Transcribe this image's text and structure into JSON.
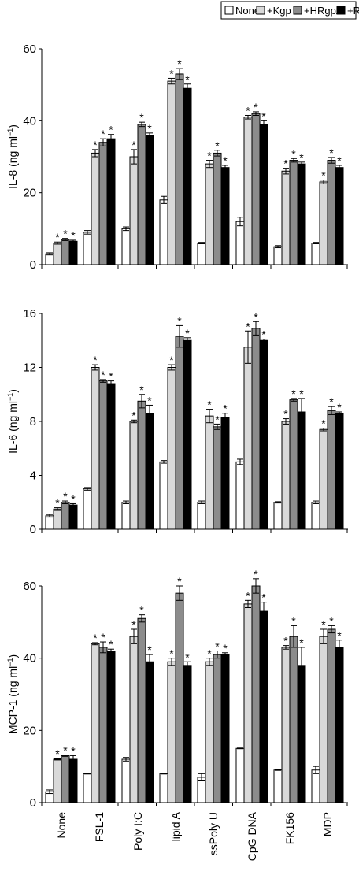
{
  "legend": {
    "items": [
      {
        "label": "None",
        "color": "#ffffff"
      },
      {
        "label": "+Kgp",
        "color": "#d9d9d9"
      },
      {
        "label": "+HRgpA",
        "color": "#8c8c8c"
      },
      {
        "label": "+RgpB",
        "color": "#000000"
      }
    ]
  },
  "significance_marker": "*",
  "chart_data": [
    {
      "type": "bar",
      "ylabel": "IL-8 (ng ml",
      "ylabel_sup": "−1",
      "ylabel_close": ")",
      "ylim": [
        0,
        60
      ],
      "yticks": [
        0,
        20,
        40,
        60
      ],
      "categories": [
        "None",
        "FSL-1",
        "Poly I:C",
        "lipid A",
        "ssPoly U",
        "CpG DNA",
        "FK156",
        "MDP"
      ],
      "series": [
        {
          "name": "None",
          "values": [
            3,
            9,
            10,
            18,
            6,
            12,
            5,
            6
          ],
          "errors": [
            0.3,
            0.5,
            0.5,
            1.0,
            0.2,
            1.2,
            0.3,
            0.2
          ],
          "stars": [
            false,
            false,
            false,
            false,
            false,
            false,
            false,
            false
          ]
        },
        {
          "name": "+Kgp",
          "values": [
            6,
            31,
            30,
            51,
            28,
            41,
            26,
            23
          ],
          "errors": [
            0.3,
            1.0,
            2.0,
            0.8,
            1.0,
            0.5,
            0.8,
            0.5
          ],
          "stars": [
            true,
            true,
            true,
            true,
            true,
            true,
            true,
            true
          ]
        },
        {
          "name": "+HRgpA",
          "values": [
            7,
            34,
            39,
            53,
            31,
            42,
            29,
            29
          ],
          "errors": [
            0.3,
            1.0,
            0.6,
            1.5,
            0.8,
            0.5,
            0.5,
            0.8
          ],
          "stars": [
            true,
            true,
            true,
            true,
            true,
            true,
            true,
            true
          ]
        },
        {
          "name": "+RgpB",
          "values": [
            6.5,
            35,
            36,
            49,
            27,
            39,
            28,
            27
          ],
          "errors": [
            0.3,
            1.2,
            0.6,
            1.2,
            0.6,
            1.0,
            0.5,
            0.6
          ],
          "stars": [
            true,
            true,
            true,
            true,
            true,
            true,
            true,
            true
          ]
        }
      ]
    },
    {
      "type": "bar",
      "ylabel": "IL-6 (ng ml",
      "ylabel_sup": "−1",
      "ylabel_close": ")",
      "ylim": [
        0,
        16
      ],
      "yticks": [
        0,
        4,
        8,
        12,
        16
      ],
      "categories": [
        "None",
        "FSL-1",
        "Poly I:C",
        "lipid A",
        "ssPoly U",
        "CpG DNA",
        "FK156",
        "MDP"
      ],
      "series": [
        {
          "name": "None",
          "values": [
            1.0,
            3.0,
            2.0,
            5.0,
            2.0,
            5.0,
            2.0,
            2.0
          ],
          "errors": [
            0.1,
            0.1,
            0.1,
            0.1,
            0.1,
            0.2,
            0.05,
            0.1
          ],
          "stars": [
            false,
            false,
            false,
            false,
            false,
            false,
            false,
            false
          ]
        },
        {
          "name": "+Kgp",
          "values": [
            1.5,
            12.0,
            8.0,
            12.0,
            8.4,
            13.5,
            8.0,
            7.4
          ],
          "errors": [
            0.1,
            0.2,
            0.1,
            0.2,
            0.5,
            1.2,
            0.2,
            0.1
          ],
          "stars": [
            true,
            true,
            true,
            true,
            true,
            true,
            true,
            true
          ]
        },
        {
          "name": "+HRgpA",
          "values": [
            2.0,
            11.0,
            9.5,
            14.3,
            7.6,
            14.9,
            9.6,
            8.8
          ],
          "errors": [
            0.1,
            0.1,
            0.5,
            0.8,
            0.2,
            0.5,
            0.1,
            0.3
          ],
          "stars": [
            true,
            true,
            true,
            true,
            true,
            true,
            true,
            true
          ]
        },
        {
          "name": "+RgpB",
          "values": [
            1.8,
            10.8,
            8.6,
            14.0,
            8.3,
            14.0,
            8.7,
            8.6
          ],
          "errors": [
            0.1,
            0.2,
            0.6,
            0.2,
            0.3,
            0.1,
            1.0,
            0.1
          ],
          "stars": [
            true,
            true,
            true,
            true,
            true,
            true,
            true,
            true
          ]
        }
      ]
    },
    {
      "type": "bar",
      "ylabel": "MCP-1 (ng ml",
      "ylabel_sup": "−1",
      "ylabel_close": ")",
      "ylim": [
        0,
        60
      ],
      "yticks": [
        0,
        20,
        40,
        60
      ],
      "categories": [
        "None",
        "FSL-1",
        "Poly I:C",
        "lipid A",
        "ssPoly U",
        "CpG DNA",
        "FK156",
        "MDP"
      ],
      "series": [
        {
          "name": "None",
          "values": [
            3,
            8,
            12,
            8,
            7,
            15,
            9,
            9
          ],
          "errors": [
            0.5,
            0.1,
            0.5,
            0.1,
            1.0,
            0.1,
            0.1,
            1.0
          ],
          "stars": [
            false,
            false,
            false,
            false,
            false,
            false,
            false,
            false
          ]
        },
        {
          "name": "+Kgp",
          "values": [
            12,
            44,
            46,
            39,
            39,
            55,
            43,
            46
          ],
          "errors": [
            0.2,
            0.3,
            2.0,
            1.0,
            1.0,
            1.0,
            0.5,
            2.0
          ],
          "stars": [
            true,
            true,
            true,
            true,
            true,
            true,
            true,
            true
          ]
        },
        {
          "name": "+HRgpA",
          "values": [
            13,
            43,
            51,
            58,
            41,
            60,
            46,
            48
          ],
          "errors": [
            0.2,
            1.5,
            1.0,
            2.0,
            1.0,
            2.0,
            3.0,
            1.0
          ],
          "stars": [
            true,
            true,
            true,
            true,
            true,
            true,
            true,
            true
          ]
        },
        {
          "name": "+RgpB",
          "values": [
            12,
            42,
            39,
            38,
            41,
            53,
            38,
            43
          ],
          "errors": [
            1.0,
            0.5,
            2.0,
            1.0,
            0.5,
            2.5,
            5.0,
            2.0
          ],
          "stars": [
            true,
            true,
            true,
            true,
            true,
            true,
            true,
            true
          ]
        }
      ]
    }
  ]
}
